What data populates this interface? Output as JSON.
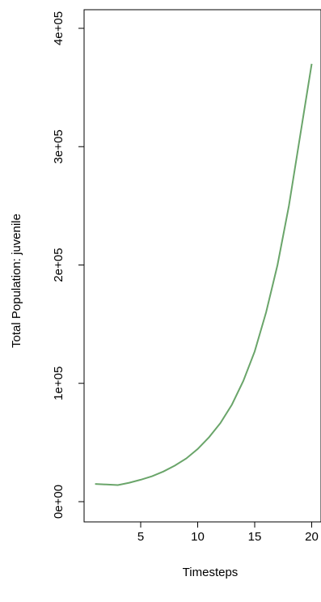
{
  "chart_data": {
    "type": "line",
    "title": "",
    "xlabel": "Timesteps",
    "ylabel": "Total Population:  juvenile",
    "xlim": [
      0,
      20
    ],
    "ylim": [
      0,
      400000
    ],
    "x_ticks": [
      {
        "value": 5,
        "label": "5"
      },
      {
        "value": 10,
        "label": "10"
      },
      {
        "value": 15,
        "label": "15"
      },
      {
        "value": 20,
        "label": "20"
      }
    ],
    "y_ticks": [
      {
        "value": 0,
        "label": "0e+00"
      },
      {
        "value": 100000,
        "label": "1e+05"
      },
      {
        "value": 200000,
        "label": "2e+05"
      },
      {
        "value": 300000,
        "label": "3e+05"
      },
      {
        "value": 400000,
        "label": "4e+05"
      }
    ],
    "grid": false,
    "series": [
      {
        "color": "#6aa56a",
        "x": [
          1,
          2,
          3,
          4,
          5,
          6,
          7,
          8,
          9,
          10,
          11,
          12,
          13,
          14,
          15,
          16,
          17,
          18,
          19,
          20
        ],
        "y": [
          15000,
          14500,
          14000,
          16000,
          18500,
          21500,
          25500,
          30500,
          36500,
          44500,
          54500,
          66500,
          82000,
          102000,
          127000,
          160000,
          200000,
          250000,
          310000,
          370000
        ]
      }
    ]
  }
}
